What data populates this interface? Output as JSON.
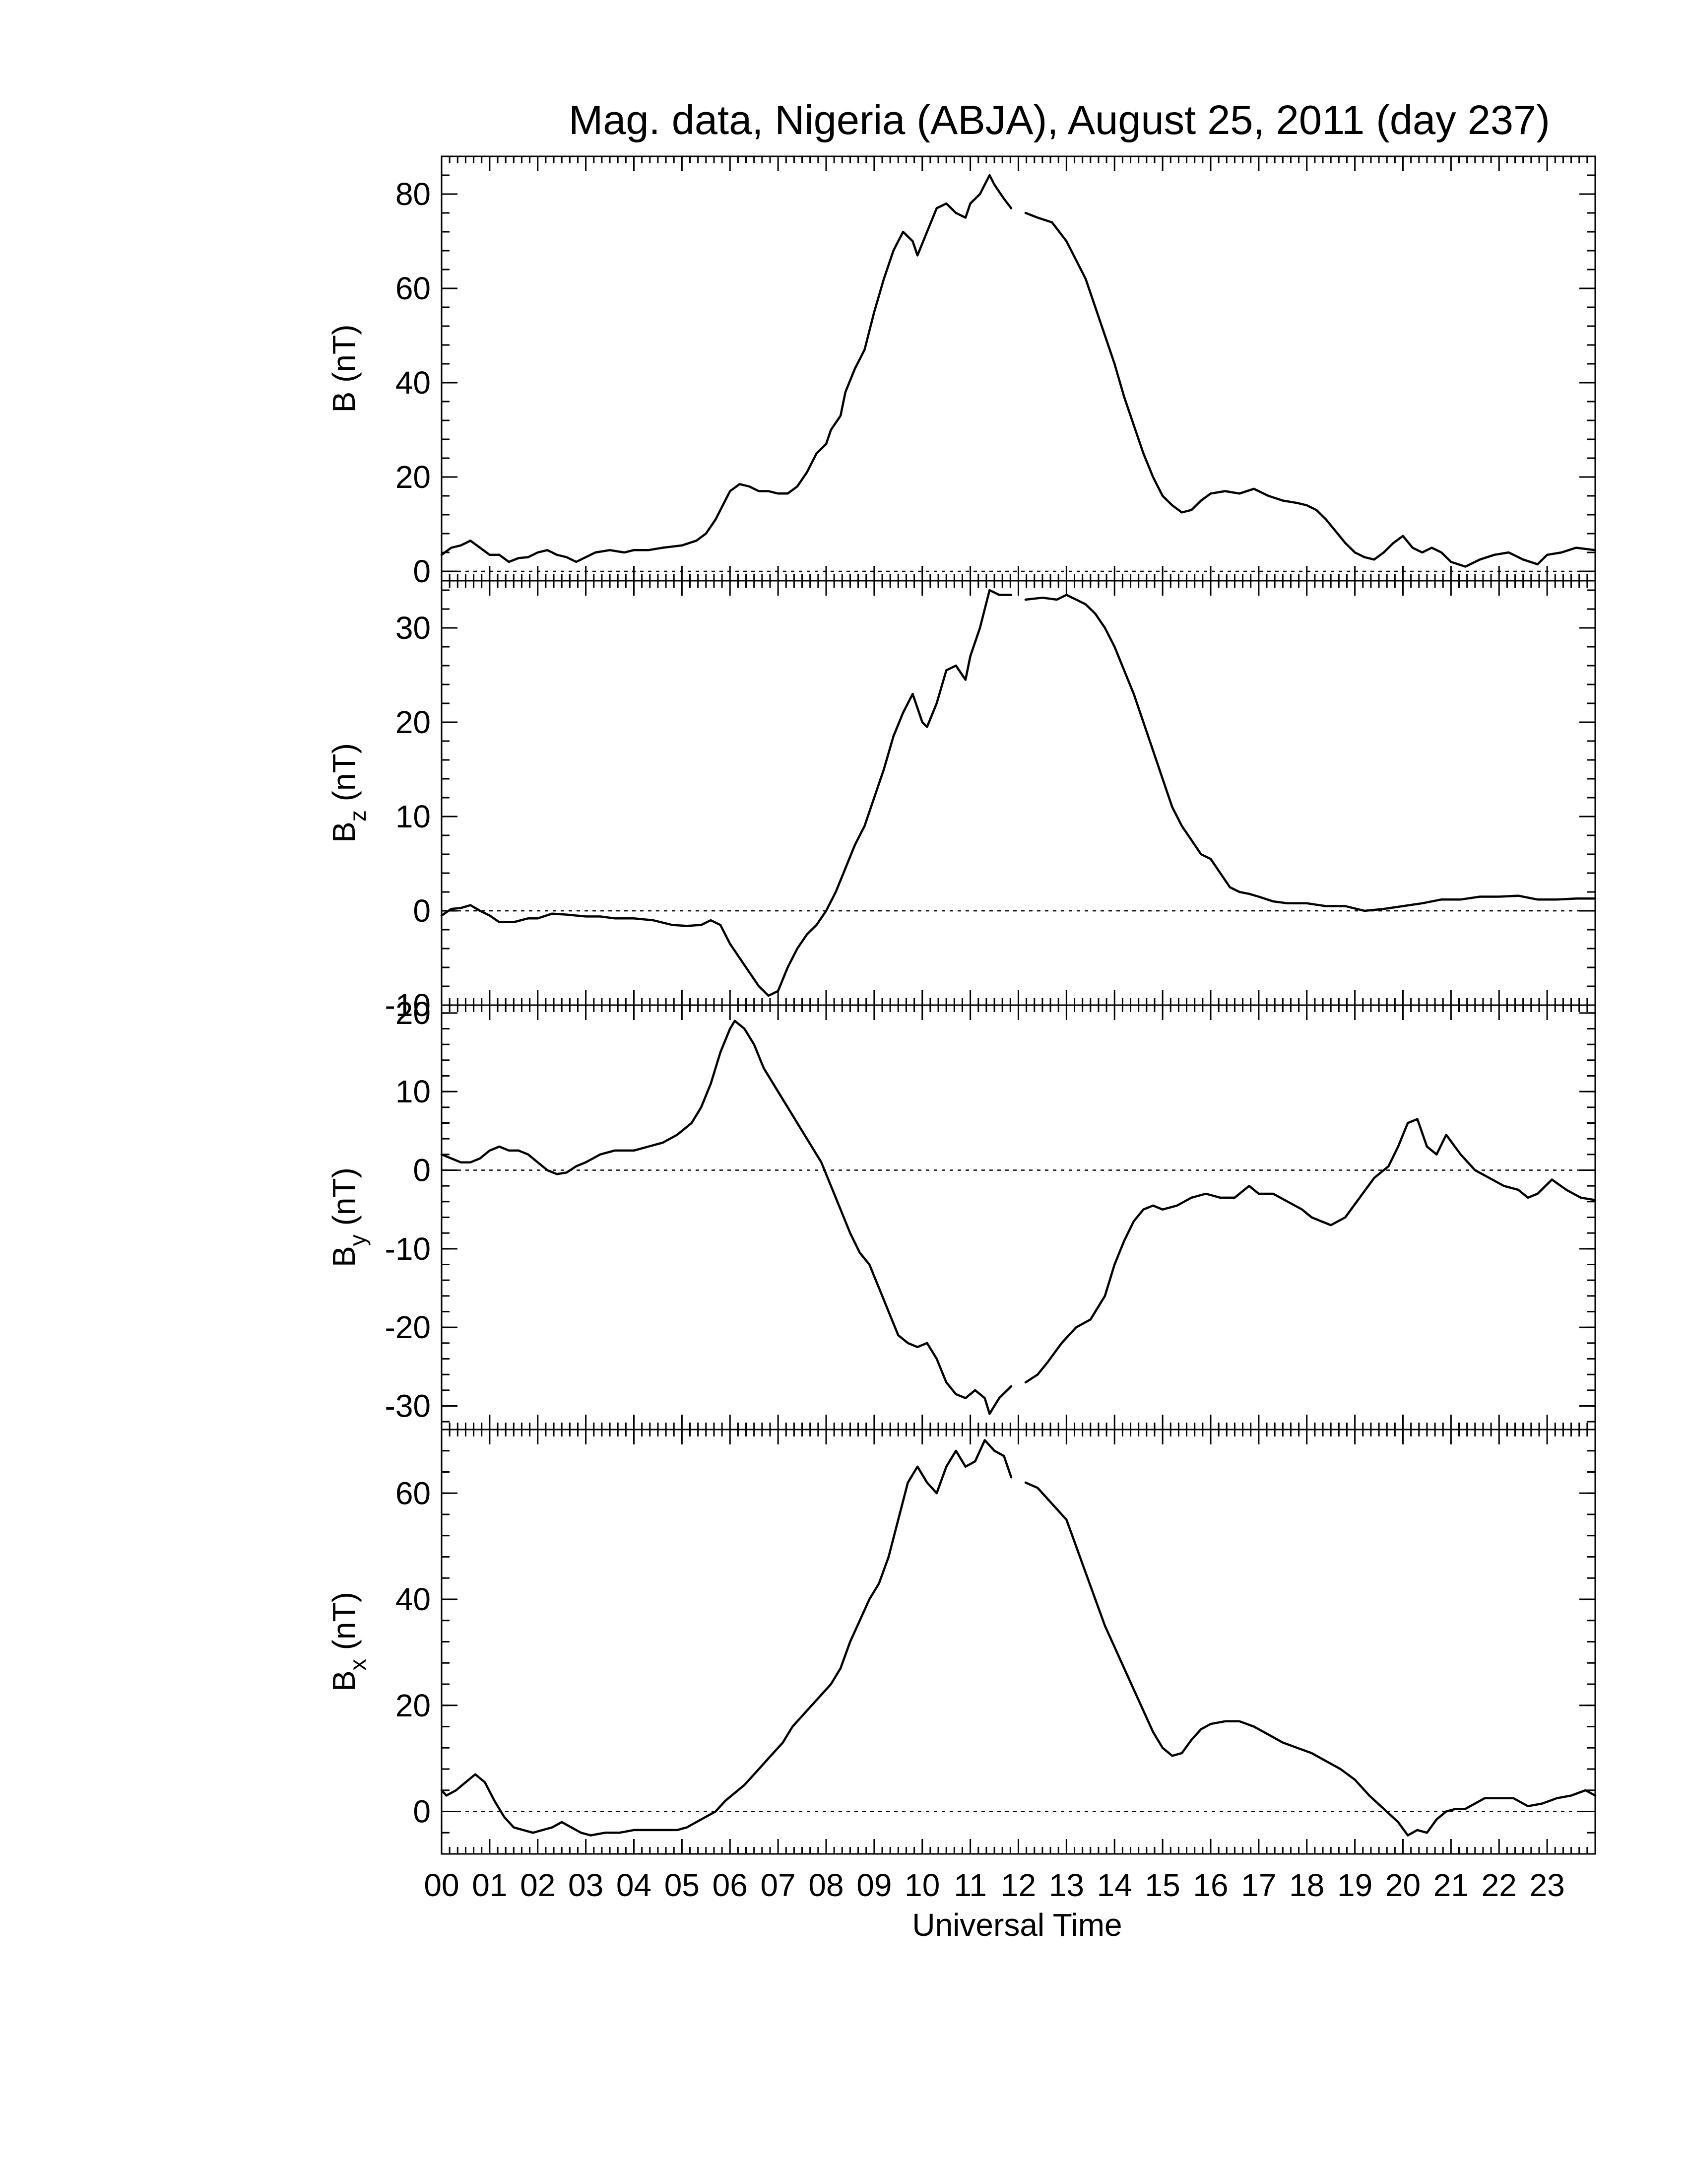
{
  "chart_data": {
    "type": "line",
    "title": "Mag. data, Nigeria (ABJA), August 25, 2011 (day 237)",
    "xlabel": "Universal Time",
    "x_ticks": [
      "00",
      "01",
      "02",
      "03",
      "04",
      "05",
      "06",
      "07",
      "08",
      "09",
      "10",
      "11",
      "12",
      "13",
      "14",
      "15",
      "16",
      "17",
      "18",
      "19",
      "20",
      "21",
      "22",
      "23"
    ],
    "xlim": [
      0,
      24
    ],
    "line_color": "#000000",
    "panels": [
      {
        "id": "B",
        "ylabel_main": "B",
        "ylabel_sub": "",
        "ylabel_unit": " (nT)",
        "ylim": [
          -2,
          88
        ],
        "yticks": [
          0,
          20,
          40,
          60,
          80
        ],
        "zero_line": true,
        "gap": [
          11.9,
          12.1
        ],
        "x": [
          0,
          0.2,
          0.4,
          0.6,
          0.8,
          1.0,
          1.2,
          1.4,
          1.6,
          1.8,
          2.0,
          2.2,
          2.4,
          2.6,
          2.8,
          3.0,
          3.2,
          3.5,
          3.8,
          4.0,
          4.3,
          4.6,
          5.0,
          5.3,
          5.5,
          5.7,
          5.9,
          6.0,
          6.2,
          6.4,
          6.6,
          6.8,
          7.0,
          7.2,
          7.4,
          7.6,
          7.8,
          8.0,
          8.1,
          8.3,
          8.4,
          8.6,
          8.8,
          9.0,
          9.2,
          9.4,
          9.6,
          9.8,
          9.9,
          10.1,
          10.3,
          10.5,
          10.7,
          10.9,
          11.0,
          11.2,
          11.4,
          11.5,
          11.7,
          11.85,
          12.15,
          12.4,
          12.7,
          13.0,
          13.2,
          13.4,
          13.6,
          13.8,
          14.0,
          14.2,
          14.4,
          14.6,
          14.8,
          15.0,
          15.2,
          15.4,
          15.6,
          15.8,
          16.0,
          16.3,
          16.6,
          16.9,
          17.2,
          17.5,
          17.8,
          18.0,
          18.2,
          18.4,
          18.6,
          18.8,
          19.0,
          19.2,
          19.4,
          19.6,
          19.8,
          20.0,
          20.2,
          20.4,
          20.6,
          20.8,
          21.0,
          21.3,
          21.6,
          21.9,
          22.2,
          22.5,
          22.8,
          23.0,
          23.3,
          23.6,
          24.0
        ],
        "y": [
          3.5,
          5,
          5.5,
          6.5,
          5,
          3.5,
          3.5,
          2,
          2.8,
          3,
          4,
          4.5,
          3.5,
          3,
          2,
          3,
          4,
          4.5,
          4,
          4.5,
          4.5,
          5,
          5.5,
          6.5,
          8,
          11,
          15,
          17,
          18.5,
          18,
          17,
          17,
          16.5,
          16.5,
          18,
          21,
          25,
          27,
          30,
          33,
          38,
          43,
          47,
          55,
          62,
          68,
          72,
          70,
          67,
          72,
          77,
          78,
          76,
          75,
          78,
          80,
          84,
          82,
          79,
          77,
          76,
          75,
          74,
          70,
          66,
          62,
          56,
          50,
          44,
          37,
          31,
          25,
          20,
          16,
          14,
          12.5,
          13,
          15,
          16.5,
          17,
          16.5,
          17.5,
          16,
          15,
          14.5,
          14,
          13,
          11,
          8.5,
          6,
          4,
          3,
          2.5,
          4,
          6,
          7.5,
          5,
          4,
          5,
          4,
          2,
          1,
          2.5,
          3.5,
          4,
          2.5,
          1.5,
          3.5,
          4,
          5,
          4.5
        ]
      },
      {
        "id": "Bz",
        "ylabel_main": "B",
        "ylabel_sub": "z",
        "ylabel_unit": " (nT)",
        "ylim": [
          -10,
          35
        ],
        "yticks": [
          -10,
          0,
          10,
          20,
          30
        ],
        "zero_line": true,
        "gap": [
          11.9,
          12.1
        ],
        "x": [
          0,
          0.2,
          0.4,
          0.6,
          0.8,
          1.0,
          1.2,
          1.5,
          1.8,
          2.0,
          2.3,
          2.6,
          3.0,
          3.3,
          3.6,
          4.0,
          4.4,
          4.8,
          5.1,
          5.4,
          5.6,
          5.8,
          6.0,
          6.2,
          6.4,
          6.6,
          6.8,
          7.0,
          7.2,
          7.4,
          7.6,
          7.8,
          8.0,
          8.2,
          8.4,
          8.6,
          8.8,
          9.0,
          9.2,
          9.4,
          9.6,
          9.8,
          10.0,
          10.1,
          10.3,
          10.5,
          10.7,
          10.9,
          11.0,
          11.2,
          11.4,
          11.6,
          11.85,
          12.15,
          12.5,
          12.8,
          13.0,
          13.2,
          13.4,
          13.6,
          13.8,
          14.0,
          14.2,
          14.4,
          14.6,
          14.8,
          15.0,
          15.2,
          15.4,
          15.6,
          15.8,
          16.0,
          16.2,
          16.4,
          16.6,
          16.8,
          17.0,
          17.3,
          17.6,
          18.0,
          18.4,
          18.8,
          19.2,
          19.6,
          20.0,
          20.4,
          20.8,
          21.2,
          21.6,
          22.0,
          22.4,
          22.8,
          23.2,
          23.6,
          24.0
        ],
        "y": [
          -0.5,
          0.2,
          0.3,
          0.6,
          0,
          -0.5,
          -1.2,
          -1.2,
          -0.8,
          -0.8,
          -0.3,
          -0.4,
          -0.6,
          -0.6,
          -0.8,
          -0.8,
          -1,
          -1.5,
          -1.6,
          -1.5,
          -1,
          -1.5,
          -3.5,
          -5,
          -6.5,
          -8,
          -9,
          -8.5,
          -6,
          -4,
          -2.5,
          -1.5,
          0,
          2,
          4.5,
          7,
          9,
          12,
          15,
          18.5,
          21,
          23,
          20,
          19.5,
          22,
          25.5,
          26,
          24.5,
          27,
          30,
          34,
          33.5,
          33.5,
          33,
          33.2,
          33,
          33.5,
          33,
          32.5,
          31.5,
          30,
          28,
          25.5,
          23,
          20,
          17,
          14,
          11,
          9,
          7.5,
          6,
          5.5,
          4,
          2.5,
          2,
          1.8,
          1.5,
          1,
          0.8,
          0.8,
          0.5,
          0.5,
          0,
          0.2,
          0.5,
          0.8,
          1.2,
          1.2,
          1.5,
          1.5,
          1.6,
          1.2,
          1.2,
          1.3,
          1.3
        ]
      },
      {
        "id": "By",
        "ylabel_main": "B",
        "ylabel_sub": "y",
        "ylabel_unit": " (nT)",
        "ylim": [
          -33,
          21
        ],
        "yticks": [
          -30,
          -20,
          -10,
          0,
          10,
          20
        ],
        "zero_line": true,
        "gap": [
          11.9,
          12.1
        ],
        "x": [
          0,
          0.2,
          0.4,
          0.6,
          0.8,
          1.0,
          1.2,
          1.4,
          1.6,
          1.8,
          2.0,
          2.2,
          2.4,
          2.6,
          2.8,
          3.0,
          3.3,
          3.6,
          4.0,
          4.3,
          4.6,
          4.9,
          5.2,
          5.4,
          5.6,
          5.8,
          6.0,
          6.1,
          6.3,
          6.5,
          6.7,
          7.0,
          7.3,
          7.6,
          7.9,
          8.1,
          8.3,
          8.5,
          8.7,
          8.9,
          9.1,
          9.3,
          9.5,
          9.7,
          9.9,
          10.1,
          10.3,
          10.5,
          10.7,
          10.9,
          11.1,
          11.3,
          11.4,
          11.6,
          11.85,
          12.15,
          12.4,
          12.6,
          12.9,
          13.2,
          13.5,
          13.8,
          14.0,
          14.2,
          14.4,
          14.6,
          14.8,
          15.0,
          15.3,
          15.6,
          15.9,
          16.2,
          16.5,
          16.8,
          17.0,
          17.3,
          17.6,
          17.9,
          18.1,
          18.3,
          18.5,
          18.8,
          19.1,
          19.4,
          19.7,
          19.9,
          20.1,
          20.3,
          20.5,
          20.7,
          20.9,
          21.2,
          21.5,
          21.8,
          22.1,
          22.4,
          22.6,
          22.8,
          23.1,
          23.4,
          23.7,
          24.0
        ],
        "y": [
          2,
          1.5,
          1,
          1,
          1.5,
          2.5,
          3,
          2.5,
          2.5,
          2,
          1,
          0,
          -0.5,
          -0.3,
          0.5,
          1,
          2,
          2.5,
          2.5,
          3,
          3.5,
          4.5,
          6,
          8,
          11,
          15,
          18,
          19,
          18,
          16,
          13,
          10,
          7,
          4,
          1,
          -2,
          -5,
          -8,
          -10.5,
          -12,
          -15,
          -18,
          -21,
          -22,
          -22.5,
          -22,
          -24,
          -27,
          -28.5,
          -29,
          -28,
          -29,
          -31,
          -29,
          -27.5,
          -27,
          -26,
          -24.5,
          -22,
          -20,
          -19,
          -16,
          -12,
          -9,
          -6.5,
          -5,
          -4.5,
          -5,
          -4.5,
          -3.5,
          -3,
          -3.5,
          -3.5,
          -2,
          -3,
          -3,
          -4,
          -5,
          -6,
          -6.5,
          -7,
          -6,
          -3.5,
          -1,
          0.5,
          3,
          6,
          6.5,
          3,
          2,
          4.5,
          2,
          0,
          -1,
          -2,
          -2.5,
          -3.5,
          -3,
          -1.2,
          -2.5,
          -3.5,
          -3.8
        ]
      },
      {
        "id": "Bx",
        "ylabel_main": "B",
        "ylabel_sub": "x",
        "ylabel_unit": " (nT)",
        "ylim": [
          -8,
          72
        ],
        "yticks": [
          0,
          20,
          40,
          60
        ],
        "zero_line": true,
        "gap": [
          11.9,
          12.1
        ],
        "x": [
          0,
          0.1,
          0.3,
          0.5,
          0.7,
          0.9,
          1.1,
          1.3,
          1.5,
          1.7,
          1.9,
          2.1,
          2.3,
          2.5,
          2.7,
          2.9,
          3.1,
          3.4,
          3.7,
          4.0,
          4.3,
          4.6,
          4.9,
          5.1,
          5.3,
          5.5,
          5.7,
          5.9,
          6.1,
          6.3,
          6.5,
          6.7,
          6.9,
          7.1,
          7.3,
          7.5,
          7.7,
          7.9,
          8.1,
          8.3,
          8.5,
          8.7,
          8.9,
          9.1,
          9.3,
          9.5,
          9.7,
          9.9,
          10.1,
          10.3,
          10.5,
          10.7,
          10.9,
          11.1,
          11.3,
          11.5,
          11.7,
          11.85,
          12.15,
          12.4,
          12.7,
          13.0,
          13.2,
          13.4,
          13.6,
          13.8,
          14.0,
          14.2,
          14.4,
          14.6,
          14.8,
          15.0,
          15.2,
          15.4,
          15.6,
          15.8,
          16.0,
          16.3,
          16.6,
          16.9,
          17.2,
          17.5,
          17.8,
          18.1,
          18.4,
          18.7,
          19.0,
          19.3,
          19.6,
          19.9,
          20.1,
          20.3,
          20.5,
          20.7,
          20.9,
          21.1,
          21.3,
          21.5,
          21.7,
          22.0,
          22.3,
          22.6,
          22.9,
          23.2,
          23.5,
          23.8,
          24.0
        ],
        "y": [
          4,
          3,
          4,
          5.5,
          7,
          5.5,
          2,
          -1,
          -3,
          -3.5,
          -4,
          -3.5,
          -3,
          -2,
          -3,
          -4,
          -4.5,
          -4,
          -4,
          -3.5,
          -3.5,
          -3.5,
          -3.5,
          -3,
          -2,
          -1,
          0,
          2,
          3.5,
          5,
          7,
          9,
          11,
          13,
          16,
          18,
          20,
          22,
          24,
          27,
          32,
          36,
          40,
          43,
          48,
          55,
          62,
          65,
          62,
          60,
          65,
          68,
          65,
          66,
          70,
          68,
          67,
          63,
          62,
          61,
          58,
          55,
          50,
          45,
          40,
          35,
          31,
          27,
          23,
          19,
          15,
          12,
          10.5,
          11,
          13.5,
          15.5,
          16.5,
          17,
          17,
          16,
          14.5,
          13,
          12,
          11,
          9.5,
          8,
          6,
          3,
          0.5,
          -2,
          -4.5,
          -3.5,
          -4,
          -1.5,
          0,
          0.5,
          0.5,
          1.5,
          2.5,
          2.5,
          2.5,
          1,
          1.5,
          2.5,
          3,
          4,
          3
        ]
      }
    ]
  }
}
